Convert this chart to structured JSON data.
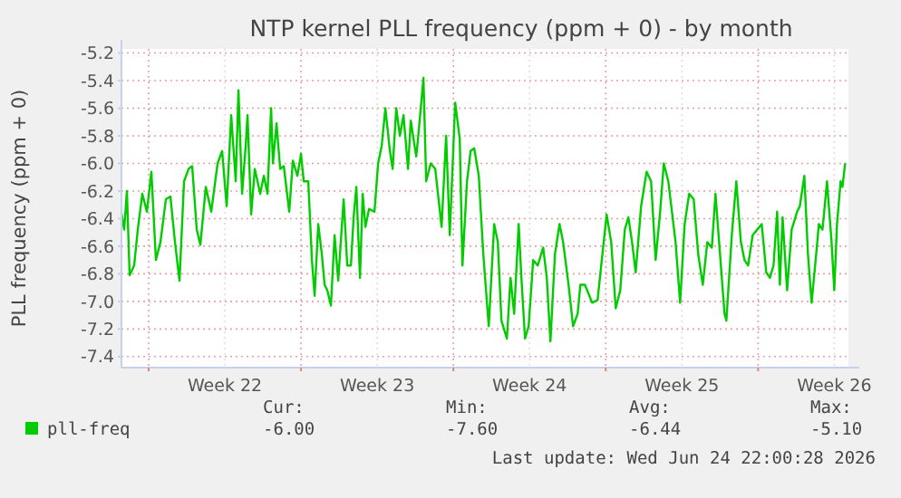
{
  "chart_data": {
    "type": "line",
    "title": "NTP kernel PLL frequency (ppm + 0) - by month",
    "ylabel": "PLL frequency (ppm + 0)",
    "xlim": [
      "2026-05-23T18:00",
      "2026-06-26T03:36"
    ],
    "ylim": [
      -7.48,
      -5.17
    ],
    "xticks": [
      {
        "value": "2026-05-25",
        "label": null
      },
      {
        "value": "2026-05-28T12:00",
        "label": "Week 22"
      },
      {
        "value": "2026-06-01",
        "label": null
      },
      {
        "value": "2026-06-04T12:00",
        "label": "Week 23"
      },
      {
        "value": "2026-06-08",
        "label": null
      },
      {
        "value": "2026-06-11T12:00",
        "label": "Week 24"
      },
      {
        "value": "2026-06-15",
        "label": null
      },
      {
        "value": "2026-06-18T12:00",
        "label": "Week 25"
      },
      {
        "value": "2026-06-22",
        "label": null
      },
      {
        "value": "2026-06-25T12:00",
        "label": "Week 26"
      }
    ],
    "yticks": [
      -5.2,
      -5.4,
      -5.6,
      -5.8,
      {
        "value": -6,
        "label": "-6.0"
      },
      -6.2,
      -6.4,
      -6.6,
      -6.8,
      {
        "value": -7,
        "label": "-7.0"
      },
      -7.2,
      -7.4
    ],
    "grid": true,
    "legend": "bottom left",
    "annotations": [
      "Cur:",
      "Min:",
      "Avg:",
      "Max:",
      "-6.00",
      "-7.60",
      "-6.44",
      "-5.10",
      "Last update: Wed Jun 24 22:00:28 2026"
    ],
    "series": [
      {
        "name": "pll-freq",
        "color": "#00cc00",
        "x": [
          "2026-05-23T18:00",
          "2026-05-23T21:00",
          "2026-05-24T00:00",
          "2026-05-24T03:00",
          "2026-05-24T08:00",
          "2026-05-24T12:00",
          "2026-05-24T17:00",
          "2026-05-24T22:00",
          "2026-05-25T03:00",
          "2026-05-25T08:00",
          "2026-05-25T13:00",
          "2026-05-25T19:00",
          "2026-05-26T00:00",
          "2026-05-26T05:00",
          "2026-05-26T10:00",
          "2026-05-26T15:00",
          "2026-05-26T20:00",
          "2026-05-27T00:00",
          "2026-05-27T05:00",
          "2026-05-27T09:00",
          "2026-05-27T15:00",
          "2026-05-27T21:00",
          "2026-05-28T04:00",
          "2026-05-28T09:00",
          "2026-05-28T14:00",
          "2026-05-28T19:00",
          "2026-05-29T00:00",
          "2026-05-29T03:00",
          "2026-05-29T07:00",
          "2026-05-29T11:00",
          "2026-05-29T13:00",
          "2026-05-29T17:00",
          "2026-05-29T21:00",
          "2026-05-30T03:00",
          "2026-05-30T07:00",
          "2026-05-30T11:00",
          "2026-05-30T15:00",
          "2026-05-30T17:00",
          "2026-05-30T21:00",
          "2026-05-31T01:00",
          "2026-05-31T05:00",
          "2026-05-31T11:00",
          "2026-05-31T15:00",
          "2026-05-31T20:00",
          "2026-06-01T00:00",
          "2026-06-01T03:00",
          "2026-06-01T08:00",
          "2026-06-01T12:00",
          "2026-06-01T15:00",
          "2026-06-01T19:00",
          "2026-06-01T23:00",
          "2026-06-02T02:00",
          "2026-06-02T05:00",
          "2026-06-02T09:00",
          "2026-06-02T13:00",
          "2026-06-02T17:00",
          "2026-06-02T23:00",
          "2026-06-03T03:00",
          "2026-06-03T07:00",
          "2026-06-03T10:00",
          "2026-06-03T13:00",
          "2026-06-03T17:00",
          "2026-06-03T20:00",
          "2026-06-03T23:00",
          "2026-06-04T03:00",
          "2026-06-04T09:00",
          "2026-06-04T13:00",
          "2026-06-04T17:00",
          "2026-06-04T21:00",
          "2026-06-05T02:00",
          "2026-06-05T05:00",
          "2026-06-05T09:00",
          "2026-06-05T13:00",
          "2026-06-05T17:00",
          "2026-06-05T22:00",
          "2026-06-06T01:00",
          "2026-06-06T07:00",
          "2026-06-06T09:00",
          "2026-06-06T15:00",
          "2026-06-06T18:00",
          "2026-06-06T23:00",
          "2026-06-07T04:00",
          "2026-06-07T11:00",
          "2026-06-07T16:00",
          "2026-06-07T20:00",
          "2026-06-08T02:00",
          "2026-06-08T07:00",
          "2026-06-08T10:00",
          "2026-06-08T15:00",
          "2026-06-08T19:00",
          "2026-06-08T23:00",
          "2026-06-09T04:00",
          "2026-06-09T09:00",
          "2026-06-09T15:00",
          "2026-06-09T21:00",
          "2026-06-10T01:00",
          "2026-06-10T05:00",
          "2026-06-10T11:00",
          "2026-06-10T15:00",
          "2026-06-10T19:00",
          "2026-06-11T00:00",
          "2026-06-11T03:00",
          "2026-06-11T07:00",
          "2026-06-11T11:00",
          "2026-06-11T16:00",
          "2026-06-11T21:00",
          "2026-06-12T03:00",
          "2026-06-12T07:00",
          "2026-06-12T11:00",
          "2026-06-12T16:00",
          "2026-06-12T21:00",
          "2026-06-13T01:00",
          "2026-06-13T07:00",
          "2026-06-13T12:00",
          "2026-06-13T17:00",
          "2026-06-13T20:00",
          "2026-06-14T01:00",
          "2026-06-14T06:00",
          "2026-06-14T09:00",
          "2026-06-14T15:00",
          "2026-06-14T19:00",
          "2026-06-15T01:00",
          "2026-06-15T06:00",
          "2026-06-15T11:00",
          "2026-06-15T16:00",
          "2026-06-15T21:00",
          "2026-06-16T01:00",
          "2026-06-16T05:00",
          "2026-06-16T09:00",
          "2026-06-16T15:00",
          "2026-06-16T21:00",
          "2026-06-17T02:00",
          "2026-06-17T07:00",
          "2026-06-17T12:00",
          "2026-06-17T16:00",
          "2026-06-17T21:00",
          "2026-06-18T01:00",
          "2026-06-18T05:00",
          "2026-06-18T10:00",
          "2026-06-18T15:00",
          "2026-06-18T20:00",
          "2026-06-19T01:00",
          "2026-06-19T06:00",
          "2026-06-19T11:00",
          "2026-06-19T16:00",
          "2026-06-19T21:00",
          "2026-06-20T01:00",
          "2026-06-20T05:00",
          "2026-06-20T11:00",
          "2026-06-20T13:00",
          "2026-06-20T19:00",
          "2026-06-21T00:00",
          "2026-06-21T05:00",
          "2026-06-21T09:00",
          "2026-06-21T13:00",
          "2026-06-21T18:00",
          "2026-06-21T23:00",
          "2026-06-22T04:00",
          "2026-06-22T09:00",
          "2026-06-22T13:00",
          "2026-06-22T17:00",
          "2026-06-22T21:00",
          "2026-06-23T00:00",
          "2026-06-23T03:00",
          "2026-06-23T08:00",
          "2026-06-23T13:00",
          "2026-06-23T19:00",
          "2026-06-23T22:00",
          "2026-06-24T03:00",
          "2026-06-24T07:00",
          "2026-06-24T11:00",
          "2026-06-24T16:00",
          "2026-06-24T19:00",
          "2026-06-24T23:00",
          "2026-06-25T04:00",
          "2026-06-25T09:00",
          "2026-06-25T12:00",
          "2026-06-25T15:00",
          "2026-06-25T19:00",
          "2026-06-25T21:00",
          "2026-06-26T00:00"
        ],
        "values": [
          -6.36,
          -6.48,
          -6.2,
          -6.81,
          -6.74,
          -6.48,
          -6.22,
          -6.35,
          -6.06,
          -6.7,
          -6.57,
          -6.26,
          -6.24,
          -6.57,
          -6.85,
          -6.13,
          -6.04,
          -6.02,
          -6.48,
          -6.59,
          -6.17,
          -6.35,
          -6.0,
          -5.91,
          -6.31,
          -5.65,
          -6.13,
          -5.47,
          -6.22,
          -5.87,
          -5.65,
          -6.37,
          -6.04,
          -6.22,
          -6.09,
          -6.22,
          -5.6,
          -6.0,
          -5.71,
          -6.04,
          -6.02,
          -6.35,
          -5.98,
          -6.09,
          -5.93,
          -6.13,
          -6.13,
          -6.7,
          -6.96,
          -6.44,
          -6.66,
          -6.88,
          -6.92,
          -7.03,
          -6.52,
          -6.85,
          -6.26,
          -6.74,
          -6.74,
          -6.39,
          -6.17,
          -6.83,
          -6.22,
          -6.46,
          -6.33,
          -6.35,
          -6.0,
          -5.87,
          -5.6,
          -5.91,
          -6.04,
          -5.6,
          -5.8,
          -5.65,
          -6.04,
          -5.69,
          -5.95,
          -5.82,
          -5.38,
          -6.13,
          -6.0,
          -6.04,
          -6.46,
          -5.8,
          -6.52,
          -5.56,
          -5.82,
          -6.74,
          -6.13,
          -5.91,
          -5.89,
          -6.09,
          -6.66,
          -7.18,
          -6.44,
          -6.57,
          -7.14,
          -7.27,
          -6.83,
          -7.09,
          -6.44,
          -6.83,
          -7.27,
          -7.18,
          -6.7,
          -6.74,
          -6.61,
          -6.83,
          -7.29,
          -6.66,
          -6.44,
          -6.57,
          -6.88,
          -7.18,
          -7.09,
          -6.88,
          -6.88,
          -6.96,
          -7.01,
          -6.99,
          -6.74,
          -6.37,
          -6.57,
          -7.05,
          -6.92,
          -6.48,
          -6.39,
          -6.57,
          -6.79,
          -6.31,
          -6.06,
          -6.13,
          -6.7,
          -6.35,
          -6.0,
          -6.13,
          -6.35,
          -6.57,
          -7.01,
          -6.44,
          -6.22,
          -6.26,
          -6.66,
          -6.88,
          -6.57,
          -6.61,
          -6.22,
          -6.57,
          -7.09,
          -7.14,
          -6.52,
          -6.13,
          -6.57,
          -6.7,
          -6.74,
          -6.52,
          -6.48,
          -6.44,
          -6.79,
          -6.83,
          -6.74,
          -6.35,
          -6.88,
          -6.39,
          -6.92,
          -6.48,
          -6.35,
          -6.31,
          -6.09,
          -6.66,
          -7.01,
          -6.66,
          -6.44,
          -6.48,
          -6.13,
          -6.57,
          -6.92,
          -6.44,
          -6.13,
          -6.17,
          -6.0
        ]
      }
    ]
  }
}
